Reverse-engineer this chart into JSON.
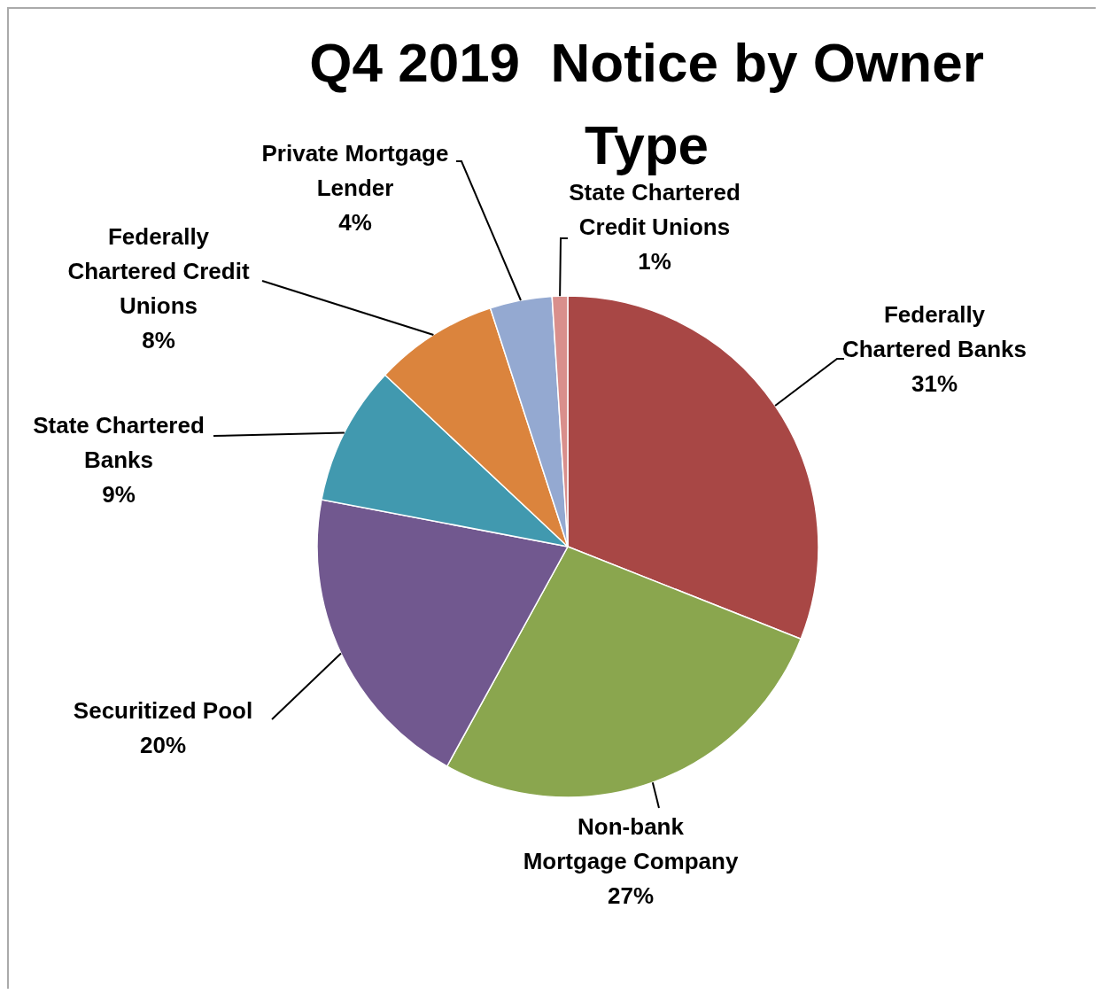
{
  "chart_data": {
    "type": "pie",
    "title": "Q4 2019  Notice by Owner Type",
    "categories": [
      "Federally Chartered Banks",
      "Non-bank Mortgage Company",
      "Securitized Pool",
      "State Chartered Banks",
      "Federally Chartered Credit Unions",
      "Private Mortgage Lender",
      "State Chartered Credit Unions"
    ],
    "values": [
      31,
      27,
      20,
      9,
      8,
      4,
      1
    ],
    "value_labels": [
      "31%",
      "27%",
      "20%",
      "9%",
      "8%",
      "4%",
      "1%"
    ],
    "colors": [
      "#a84745",
      "#8aa64e",
      "#71588f",
      "#4199af",
      "#db843d",
      "#94a9d1",
      "#d98f8c"
    ],
    "legend": false
  }
}
